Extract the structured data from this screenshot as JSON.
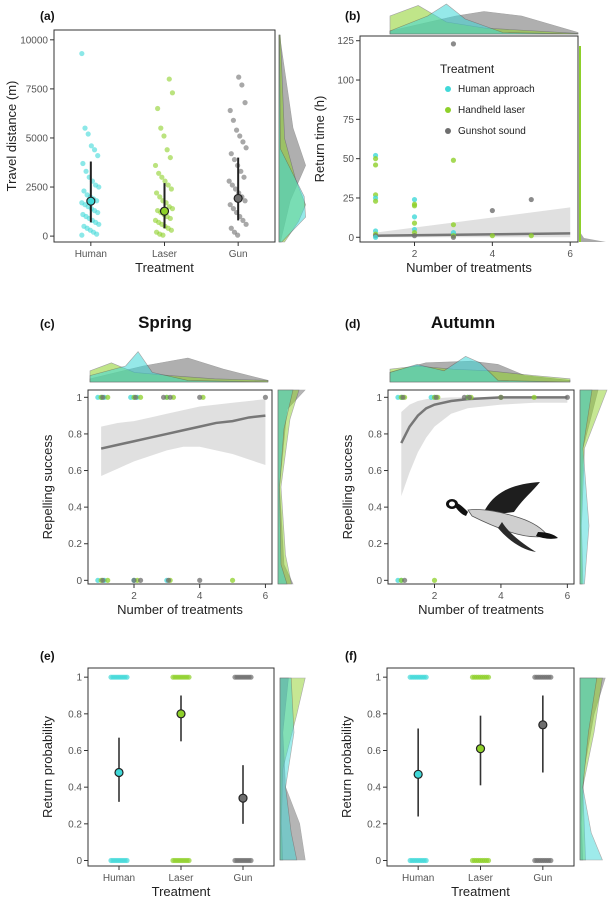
{
  "colors": {
    "human": "#40d8d8",
    "laser": "#8ed02a",
    "gun": "#6e6e6e",
    "trend": "#777777",
    "band": "#dddddd"
  },
  "legend": {
    "title": "Treatment",
    "items": [
      {
        "label": "Human approach",
        "key": "human"
      },
      {
        "label": "Handheld laser",
        "key": "laser"
      },
      {
        "label": "Gunshot sound",
        "key": "gun"
      }
    ]
  },
  "chart_data": [
    {
      "id": "a",
      "panel_label": "(a)",
      "title": "",
      "type": "scatter",
      "xlabel": "Treatment",
      "ylabel": "Travel distance (m)",
      "categories": [
        "Human",
        "Laser",
        "Gun"
      ],
      "ylim": [
        -300,
        10500
      ],
      "yticks": [
        0,
        2500,
        5000,
        7500,
        10000
      ],
      "grid": false,
      "means": [
        {
          "category": "Human",
          "mean": 1780,
          "lower": 700,
          "upper": 3800
        },
        {
          "category": "Laser",
          "mean": 1270,
          "lower": 400,
          "upper": 2700
        },
        {
          "category": "Gun",
          "mean": 1920,
          "lower": 800,
          "upper": 4000
        }
      ],
      "raw_points": {
        "Human": [
          9300,
          5500,
          5200,
          4600,
          4400,
          4100,
          3700,
          3300,
          3000,
          2800,
          2600,
          2500,
          2300,
          2100,
          2000,
          1900,
          1800,
          1700,
          1600,
          1500,
          1400,
          1300,
          1200,
          1100,
          1000,
          900,
          800,
          700,
          600,
          500,
          400,
          300,
          200,
          100,
          50
        ],
        "Laser": [
          8000,
          7300,
          6500,
          5500,
          5100,
          4400,
          4000,
          3600,
          3200,
          3000,
          2800,
          2600,
          2400,
          2200,
          2000,
          1800,
          1700,
          1500,
          1400,
          1300,
          1200,
          1100,
          1000,
          900,
          800,
          700,
          600,
          500,
          400,
          300,
          200,
          100,
          50
        ],
        "Gun": [
          8100,
          7700,
          6800,
          6400,
          5900,
          5400,
          5100,
          4800,
          4500,
          4200,
          3900,
          3600,
          3300,
          3000,
          2800,
          2600,
          2400,
          2200,
          2000,
          1800,
          1600,
          1400,
          1200,
          1000,
          800,
          600,
          400,
          200,
          50
        ]
      }
    },
    {
      "id": "b",
      "panel_label": "(b)",
      "title": "",
      "type": "scatter",
      "xlabel": "Number of treatments",
      "ylabel": "Return time (h)",
      "xlim": [
        0.6,
        6.2
      ],
      "xticks": [
        2,
        4,
        6
      ],
      "ylim": [
        -3,
        128
      ],
      "yticks": [
        0,
        25,
        50,
        75,
        100,
        125
      ],
      "legend_position": "top-right",
      "grid": false,
      "points": [
        {
          "x": 1,
          "y": 52,
          "s": "human"
        },
        {
          "x": 1,
          "y": 50,
          "s": "laser"
        },
        {
          "x": 1,
          "y": 46,
          "s": "laser"
        },
        {
          "x": 1,
          "y": 27,
          "s": "laser"
        },
        {
          "x": 1,
          "y": 25,
          "s": "human"
        },
        {
          "x": 1,
          "y": 23,
          "s": "laser"
        },
        {
          "x": 1,
          "y": 4,
          "s": "human"
        },
        {
          "x": 1,
          "y": 2,
          "s": "laser"
        },
        {
          "x": 1,
          "y": 1,
          "s": "gun"
        },
        {
          "x": 1,
          "y": 0,
          "s": "human"
        },
        {
          "x": 2,
          "y": 24,
          "s": "human"
        },
        {
          "x": 2,
          "y": 21,
          "s": "laser"
        },
        {
          "x": 2,
          "y": 20,
          "s": "laser"
        },
        {
          "x": 2,
          "y": 13,
          "s": "human"
        },
        {
          "x": 2,
          "y": 9,
          "s": "laser"
        },
        {
          "x": 2,
          "y": 5,
          "s": "human"
        },
        {
          "x": 2,
          "y": 3,
          "s": "laser"
        },
        {
          "x": 2,
          "y": 1,
          "s": "gun"
        },
        {
          "x": 3,
          "y": 123,
          "s": "gun"
        },
        {
          "x": 3,
          "y": 49,
          "s": "laser"
        },
        {
          "x": 3,
          "y": 8,
          "s": "laser"
        },
        {
          "x": 3,
          "y": 3,
          "s": "human"
        },
        {
          "x": 3,
          "y": 1,
          "s": "laser"
        },
        {
          "x": 3,
          "y": 0,
          "s": "gun"
        },
        {
          "x": 4,
          "y": 17,
          "s": "gun"
        },
        {
          "x": 4,
          "y": 1,
          "s": "laser"
        },
        {
          "x": 5,
          "y": 24,
          "s": "gun"
        },
        {
          "x": 5,
          "y": 1,
          "s": "laser"
        }
      ],
      "trend": {
        "x": [
          1,
          6
        ],
        "y": [
          1,
          2.5
        ],
        "band_lower": [
          0,
          0
        ],
        "band_upper": [
          3,
          19
        ]
      }
    },
    {
      "id": "c",
      "panel_label": "(c)",
      "title": "Spring",
      "type": "scatter",
      "xlabel": "Number of treatments",
      "ylabel": "Repelling success",
      "xlim": [
        0.6,
        6.2
      ],
      "xticks": [
        2,
        4,
        6
      ],
      "ylim": [
        -0.02,
        1.04
      ],
      "yticks": [
        0,
        0.2,
        0.4,
        0.6,
        0.8,
        1
      ],
      "grid": false,
      "points_y1": {
        "human": [
          0.9,
          1.0,
          1.1,
          1.9,
          2.0,
          2.1,
          3.0
        ],
        "laser": [
          1.0,
          1.2,
          2.0,
          2.2,
          3.0,
          3.2,
          4.1
        ],
        "gun": [
          1.05,
          2.05,
          2.9,
          3.1,
          4.0,
          6.0
        ]
      },
      "points_y0": {
        "human": [
          0.9,
          1.1,
          2.0,
          3.0
        ],
        "laser": [
          1.0,
          1.2,
          2.1,
          3.1,
          5.0
        ],
        "gun": [
          1.05,
          2.0,
          2.2,
          3.05,
          4.0
        ]
      },
      "trend": {
        "x": [
          1,
          1.5,
          2,
          2.5,
          3,
          3.5,
          4,
          4.5,
          5,
          5.5,
          6
        ],
        "y": [
          0.72,
          0.74,
          0.76,
          0.78,
          0.8,
          0.82,
          0.84,
          0.86,
          0.87,
          0.89,
          0.9
        ],
        "band_lower": [
          0.57,
          0.61,
          0.65,
          0.68,
          0.71,
          0.73,
          0.73,
          0.71,
          0.69,
          0.66,
          0.63
        ],
        "band_upper": [
          0.84,
          0.86,
          0.87,
          0.89,
          0.91,
          0.93,
          0.95,
          0.96,
          0.97,
          0.98,
          0.99
        ]
      }
    },
    {
      "id": "d",
      "panel_label": "(d)",
      "title": "Autumn",
      "type": "scatter",
      "xlabel": "Number of treatments",
      "ylabel": "Repelling success",
      "xlim": [
        0.6,
        6.2
      ],
      "xticks": [
        2,
        4,
        6
      ],
      "ylim": [
        -0.02,
        1.04
      ],
      "yticks": [
        0,
        0.2,
        0.4,
        0.6,
        0.8,
        1
      ],
      "grid": false,
      "points_y1": {
        "human": [
          0.9,
          1.0,
          1.9,
          2.0,
          3.0
        ],
        "laser": [
          1.0,
          1.1,
          2.0,
          2.1,
          3.0,
          3.1,
          4.0,
          5.0
        ],
        "gun": [
          1.05,
          2.05,
          2.9,
          3.05,
          4.0,
          6.0
        ]
      },
      "points_y0": {
        "human": [
          0.9,
          1.0
        ],
        "laser": [
          1.0,
          2.0
        ],
        "gun": [
          1.1
        ]
      },
      "trend": {
        "x": [
          1,
          1.25,
          1.5,
          1.75,
          2,
          2.5,
          3,
          4,
          5,
          6
        ],
        "y": [
          0.75,
          0.84,
          0.9,
          0.94,
          0.96,
          0.98,
          0.99,
          1.0,
          1.0,
          1.0
        ],
        "band_lower": [
          0.46,
          0.59,
          0.7,
          0.78,
          0.84,
          0.91,
          0.94,
          0.96,
          0.97,
          0.97
        ],
        "band_upper": [
          0.92,
          0.96,
          0.98,
          0.99,
          0.995,
          1.0,
          1.0,
          1.0,
          1.0,
          1.0
        ]
      }
    },
    {
      "id": "e",
      "panel_label": "(e)",
      "title": "",
      "type": "scatter",
      "xlabel": "Treatment",
      "ylabel": "Return probability",
      "categories": [
        "Human",
        "Laser",
        "Gun"
      ],
      "ylim": [
        -0.03,
        1.05
      ],
      "yticks": [
        0,
        0.2,
        0.4,
        0.6,
        0.8,
        1
      ],
      "grid": false,
      "means": [
        {
          "category": "Human",
          "mean": 0.48,
          "lower": 0.32,
          "upper": 0.67
        },
        {
          "category": "Laser",
          "mean": 0.8,
          "lower": 0.65,
          "upper": 0.9
        },
        {
          "category": "Gun",
          "mean": 0.34,
          "lower": 0.2,
          "upper": 0.52
        }
      ]
    },
    {
      "id": "f",
      "panel_label": "(f)",
      "title": "",
      "type": "scatter",
      "xlabel": "Treatment",
      "ylabel": "Return probability",
      "categories": [
        "Human",
        "Laser",
        "Gun"
      ],
      "ylim": [
        -0.03,
        1.05
      ],
      "yticks": [
        0,
        0.2,
        0.4,
        0.6,
        0.8,
        1
      ],
      "grid": false,
      "means": [
        {
          "category": "Human",
          "mean": 0.47,
          "lower": 0.24,
          "upper": 0.72
        },
        {
          "category": "Laser",
          "mean": 0.61,
          "lower": 0.41,
          "upper": 0.79
        },
        {
          "category": "Gun",
          "mean": 0.74,
          "lower": 0.48,
          "upper": 0.9
        }
      ]
    }
  ]
}
